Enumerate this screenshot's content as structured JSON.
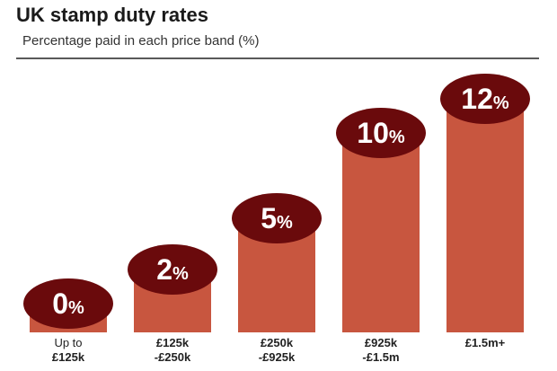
{
  "chart_data": {
    "type": "bar",
    "title": "UK stamp duty rates",
    "subtitle": "Percentage paid in each price band (%)",
    "categories": [
      "Up to\n£125k",
      "£125k\n-£250k",
      "£250k\n-£925k",
      "£925k\n-£1.5m",
      "£1.5m+"
    ],
    "values": [
      0,
      2,
      5,
      10,
      12
    ],
    "value_labels": [
      "0%",
      "2%",
      "5%",
      "10%",
      "12%"
    ],
    "color": "#c8563f",
    "label_color": "#6a0a0c"
  }
}
